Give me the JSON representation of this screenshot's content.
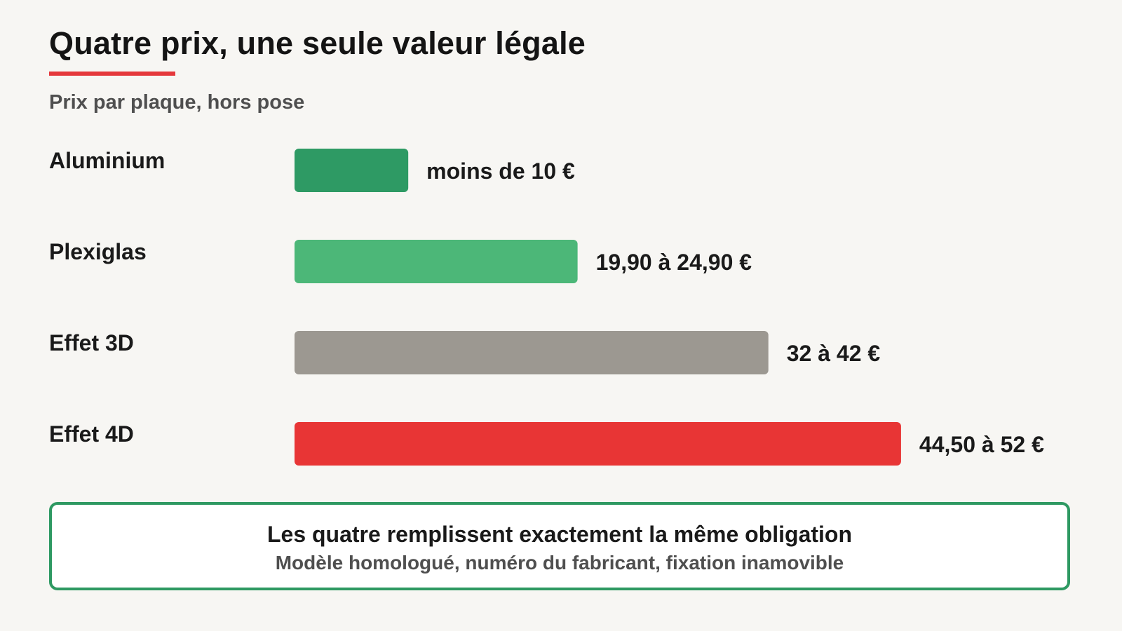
{
  "chart_data": {
    "type": "bar",
    "orientation": "horizontal",
    "title": "Quatre prix, une seule valeur légale",
    "subtitle": "Prix par plaque, hors pose",
    "categories": [
      "Aluminium",
      "Plexiglas",
      "Effet 3D",
      "Effet 4D"
    ],
    "values": [
      9,
      22.4,
      37.5,
      48
    ],
    "value_labels": [
      "moins de 10 €",
      "19,90 à 24,90 €",
      "32 à 42 €",
      "44,50 à 52 €"
    ],
    "colors": [
      "#2e9a64",
      "#4cb778",
      "#9c9891",
      "#e83535"
    ],
    "xlim": [
      0,
      52
    ],
    "grid": false,
    "legend": "none"
  },
  "accent_color": "#e5383b",
  "note": {
    "main": "Les quatre remplissent exactement la même obligation",
    "sub": "Modèle homologué, numéro du fabricant, fixation inamovible",
    "border_color": "#2e9962"
  }
}
